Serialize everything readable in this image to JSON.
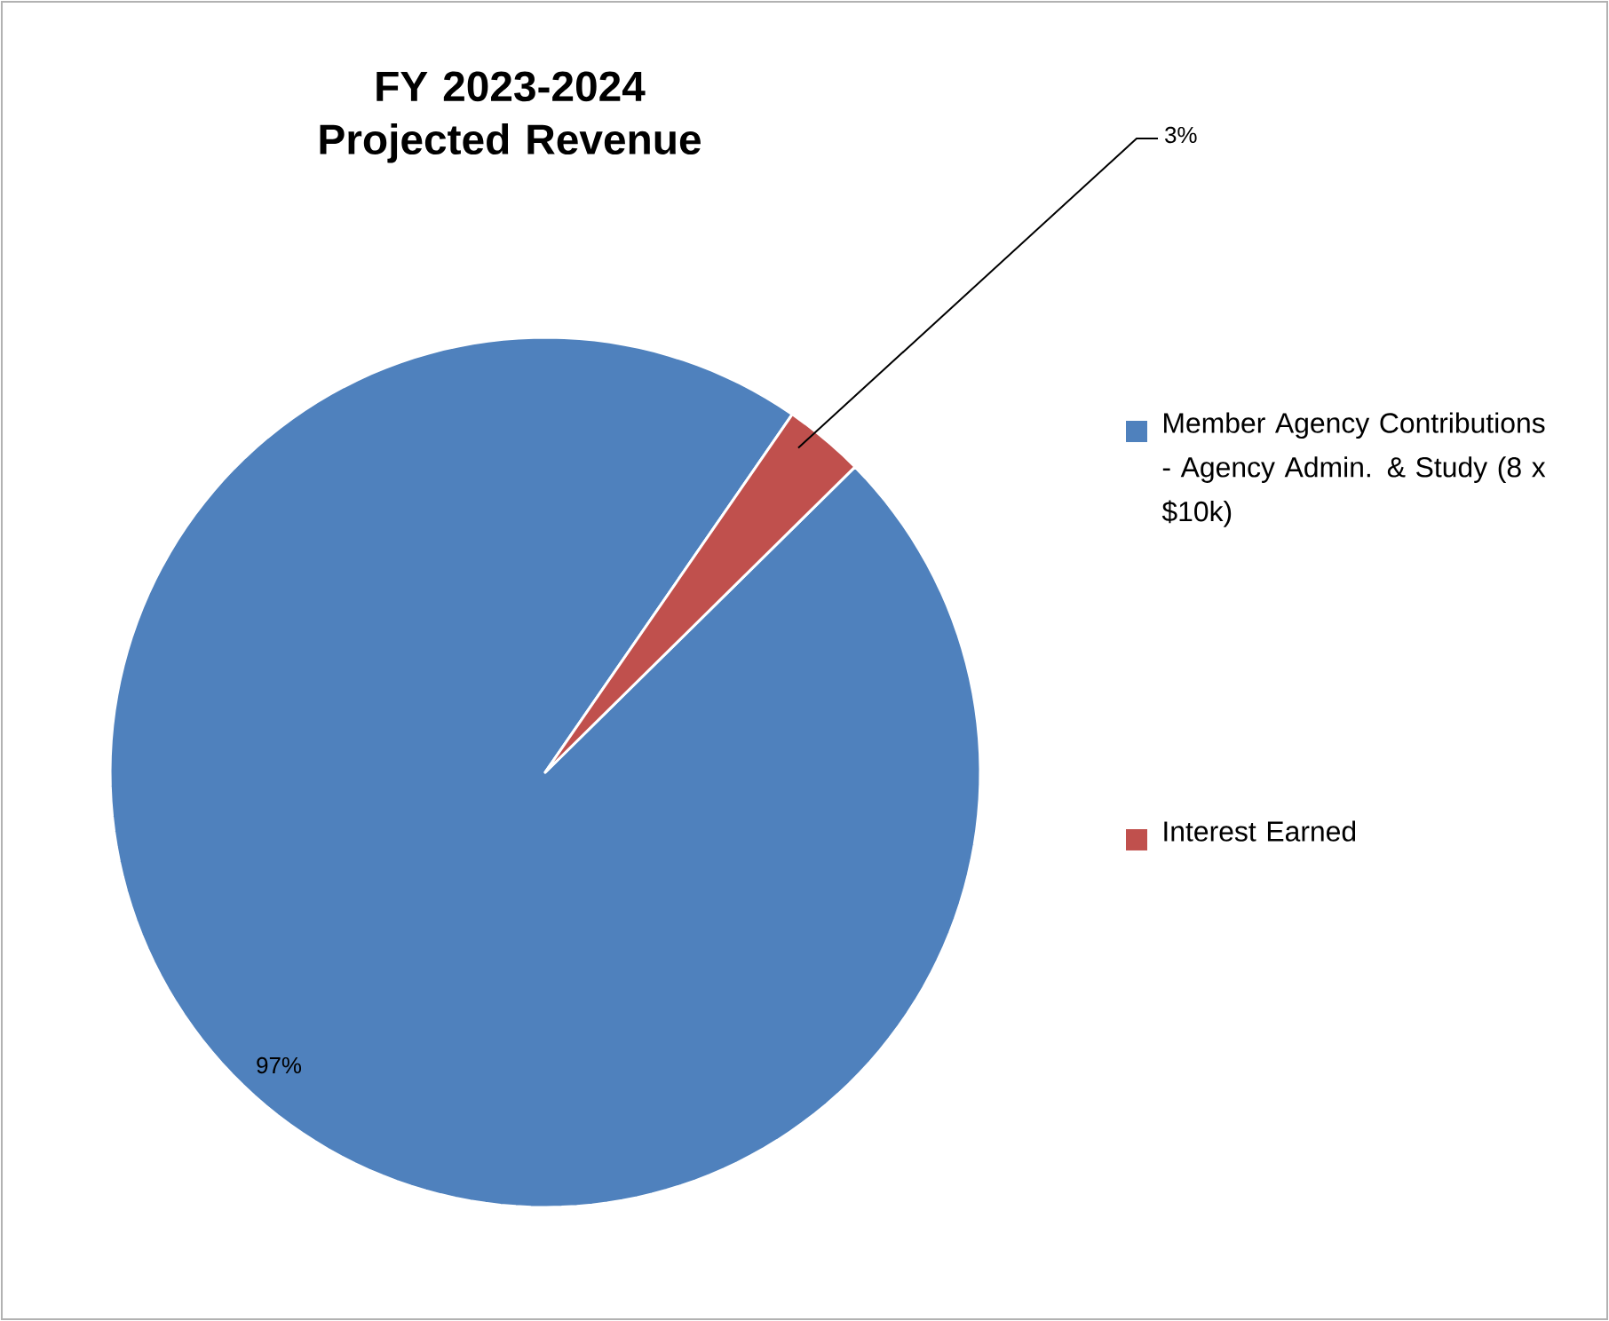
{
  "chart_data": {
    "type": "pie",
    "title": "FY 2023-2024 Projected Revenue",
    "categories": [
      "Member Agency Contributions - Agency Admin. & Study (8 x $10k)",
      "Interest Earned"
    ],
    "values": [
      97,
      3
    ],
    "colors": [
      "#4f81bd",
      "#c0504d"
    ],
    "value_labels": [
      "97%",
      "3%"
    ],
    "legend": "right"
  }
}
